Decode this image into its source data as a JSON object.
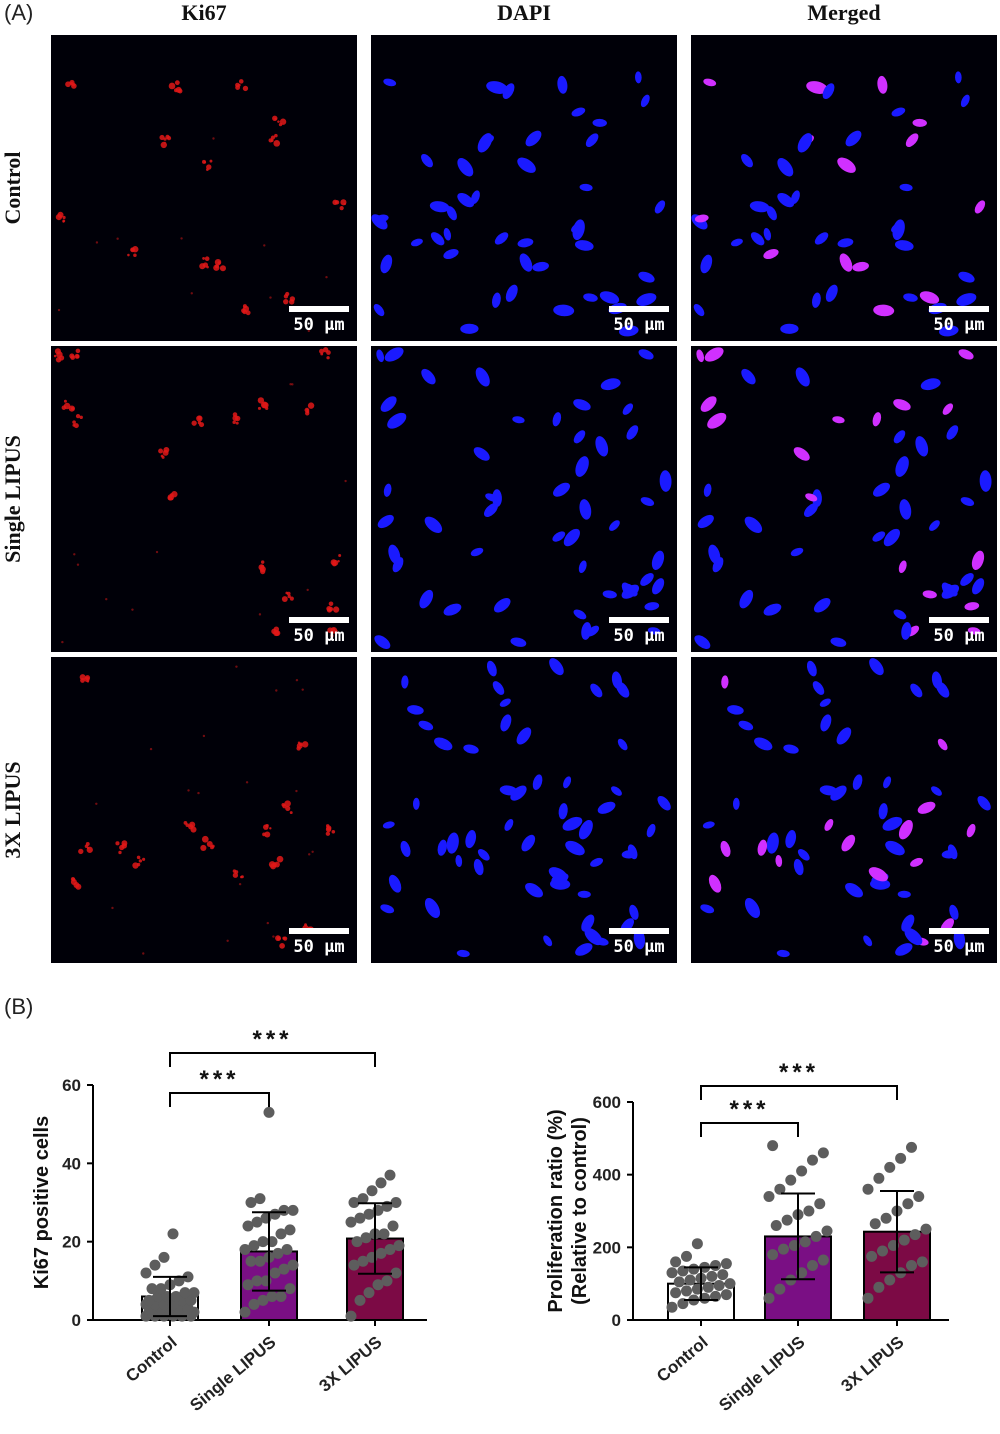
{
  "panel_labels": {
    "a": "(A)",
    "b": "(B)"
  },
  "image_grid": {
    "columns": [
      "Ki67",
      "DAPI",
      "Merged"
    ],
    "rows": [
      "Control",
      "Single LIPUS",
      "3X LIPUS"
    ],
    "scale_bar": "50 μm",
    "colors": {
      "ki67": "#e01818",
      "dapi": "#1a1aff",
      "merged": "#d030ff"
    }
  },
  "chart_data": [
    {
      "type": "bar",
      "categories": [
        "Control",
        "Single LIPUS",
        "3X LIPUS"
      ],
      "values": [
        6,
        17.5,
        20.8
      ],
      "error": [
        5,
        10,
        9
      ],
      "points": [
        [
          1,
          1,
          1,
          1,
          1,
          1,
          2,
          2,
          2,
          2,
          2,
          2,
          2,
          3,
          3,
          3,
          3,
          4,
          4,
          4,
          4,
          5,
          5,
          5,
          6,
          6,
          6,
          7,
          7,
          8,
          8,
          9,
          10,
          11,
          12,
          14,
          16,
          22
        ],
        [
          2,
          4,
          5,
          6,
          6,
          8,
          9,
          10,
          10,
          12,
          13,
          14,
          15,
          15,
          16,
          17,
          18,
          18,
          19,
          20,
          20,
          22,
          23,
          24,
          25,
          26,
          27,
          28,
          28,
          30,
          31,
          53
        ],
        [
          1,
          5,
          7,
          9,
          10,
          12,
          14,
          15,
          16,
          17,
          18,
          19,
          20,
          21,
          22,
          22,
          24,
          25,
          26,
          27,
          28,
          29,
          30,
          30,
          31,
          33,
          35,
          37
        ]
      ],
      "ylabel": "Ki67 positive cells",
      "ylim": [
        0,
        60
      ],
      "yticks": [
        0,
        20,
        40,
        60
      ],
      "colors": [
        "#ffffff",
        "#7a0f84",
        "#7c0a45"
      ],
      "significance": [
        {
          "from": 0,
          "to": 1,
          "label": "***"
        },
        {
          "from": 0,
          "to": 2,
          "label": "***"
        }
      ]
    },
    {
      "type": "bar",
      "categories": [
        "Control",
        "Single LIPUS",
        "3X LIPUS"
      ],
      "values": [
        100,
        230,
        243
      ],
      "error": [
        45,
        118,
        112
      ],
      "points": [
        [
          35,
          45,
          55,
          60,
          65,
          70,
          75,
          80,
          85,
          90,
          95,
          100,
          105,
          110,
          115,
          120,
          125,
          130,
          135,
          140,
          145,
          150,
          155,
          160,
          175,
          210
        ],
        [
          60,
          85,
          110,
          130,
          150,
          165,
          180,
          195,
          205,
          215,
          230,
          245,
          260,
          275,
          290,
          300,
          320,
          340,
          360,
          385,
          410,
          440,
          460,
          480
        ],
        [
          60,
          90,
          110,
          130,
          150,
          160,
          175,
          190,
          205,
          220,
          235,
          250,
          265,
          280,
          300,
          320,
          340,
          360,
          390,
          420,
          445,
          475
        ]
      ],
      "ylabel": "Proliferation ratio (%)\n(Relative to control)",
      "ylim": [
        0,
        600
      ],
      "yticks": [
        0,
        200,
        400,
        600
      ],
      "colors": [
        "#ffffff",
        "#7a0f84",
        "#7c0a45"
      ],
      "significance": [
        {
          "from": 0,
          "to": 1,
          "label": "***"
        },
        {
          "from": 0,
          "to": 2,
          "label": "***"
        }
      ]
    }
  ]
}
